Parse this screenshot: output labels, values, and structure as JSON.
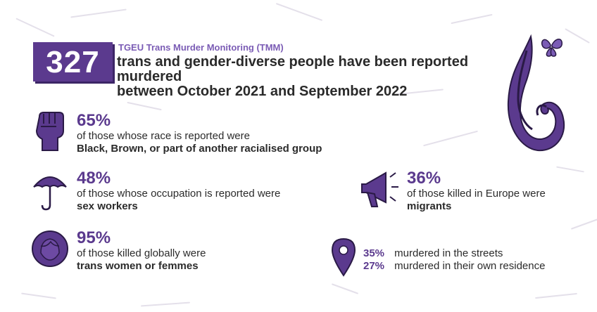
{
  "header": {
    "total": "327",
    "label": "TGEU Trans Murder Monitoring (TMM)",
    "line1": "trans and gender-diverse people have been reported murdered",
    "line2": "between October 2021 and September 2022"
  },
  "stats": {
    "race": {
      "pct": "65%",
      "desc": "of those whose race is reported were",
      "bold": "Black, Brown, or part of another racialised group",
      "icon": "raised-fist-icon"
    },
    "occupation": {
      "pct": "48%",
      "desc": "of those whose occupation is reported were",
      "bold": "sex workers",
      "icon": "umbrella-icon"
    },
    "gender": {
      "pct": "95%",
      "desc": "of those killed globally were",
      "bold": "trans women or femmes",
      "icon": "face-hair-icon"
    },
    "europe": {
      "pct": "36%",
      "desc": "of those killed in Europe were",
      "bold": "migrants",
      "icon": "megaphone-icon"
    }
  },
  "location": {
    "icon": "map-pin-icon",
    "rows": [
      {
        "pct": "35%",
        "text": "murdered in the streets"
      },
      {
        "pct": "27%",
        "text": "murdered in their own residence"
      }
    ]
  },
  "colors": {
    "accent": "#5b3a8e",
    "light_accent": "#7b5cb5"
  }
}
